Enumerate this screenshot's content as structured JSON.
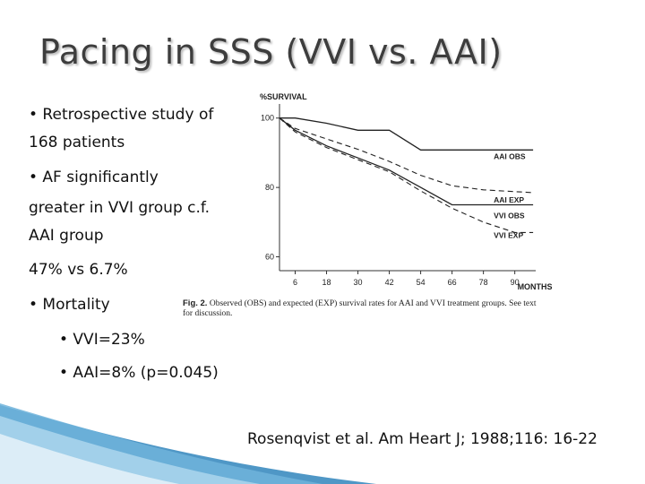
{
  "slide": {
    "title": "Pacing in SSS (VVI vs. AAI)",
    "bullets": [
      "• Retrospective study of",
      "168 patients",
      "• AF significantly",
      "greater in VVI group c.f.",
      "AAI group",
      "47% vs 6.7%",
      "• Mortality",
      "• VVI=23%",
      "• AAI=8% (p=0.045)"
    ],
    "citation": "Rosenqvist et al. Am Heart J; 1988;116: 16-22"
  },
  "figure": {
    "label": "Fig. 2.",
    "caption_line1": "Observed (OBS) and expected (EXP) survival rates for AAI and VVI treatment groups. See text",
    "caption_line2": "for discussion."
  },
  "chart_data": {
    "type": "line",
    "ylabel": "%SURVIVAL",
    "xlabel": "MONTHS",
    "x_ticks": [
      6,
      18,
      30,
      42,
      54,
      66,
      78,
      90
    ],
    "y_ticks": [
      60,
      80,
      100
    ],
    "xlim": [
      0,
      98
    ],
    "ylim": [
      56,
      102
    ],
    "series": [
      {
        "name": "AAI OBS",
        "style": "solid",
        "x": [
          0,
          6,
          18,
          30,
          36,
          42,
          54,
          66,
          78,
          90,
          97
        ],
        "y": [
          100,
          100,
          98.5,
          96.5,
          96.5,
          96.5,
          90.8,
          90.8,
          90.8,
          90.8,
          90.8
        ]
      },
      {
        "name": "AAI EXP",
        "style": "dashed",
        "x": [
          0,
          6,
          18,
          30,
          42,
          54,
          66,
          78,
          90,
          97
        ],
        "y": [
          100,
          97,
          94,
          91,
          87.5,
          83.5,
          80.5,
          79.3,
          78.8,
          78.5
        ]
      },
      {
        "name": "VVI OBS",
        "style": "solid",
        "x": [
          0,
          6,
          18,
          30,
          42,
          54,
          66,
          78,
          90,
          97
        ],
        "y": [
          100,
          96.5,
          92,
          88.5,
          85,
          80,
          75,
          75,
          75,
          75
        ]
      },
      {
        "name": "VVI EXP",
        "style": "dashed",
        "x": [
          0,
          6,
          18,
          30,
          42,
          54,
          66,
          78,
          90,
          97
        ],
        "y": [
          100,
          96,
          91.5,
          88,
          84.5,
          79,
          74,
          70,
          67,
          67
        ]
      }
    ]
  }
}
